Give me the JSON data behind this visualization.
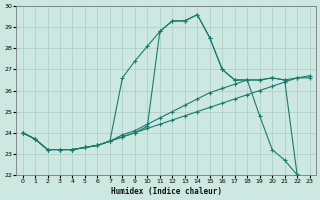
{
  "xlabel": "Humidex (Indice chaleur)",
  "background_color": "#cce8e0",
  "line_color": "#1a7a6e",
  "grid_color": "#aaccc4",
  "xlim": [
    -0.5,
    23.5
  ],
  "ylim": [
    22,
    30
  ],
  "xticks": [
    0,
    1,
    2,
    3,
    4,
    5,
    6,
    7,
    8,
    9,
    10,
    11,
    12,
    13,
    14,
    15,
    16,
    17,
    18,
    19,
    20,
    21,
    22,
    23
  ],
  "yticks": [
    22,
    23,
    24,
    25,
    26,
    27,
    28,
    29,
    30
  ],
  "figsize": [
    3.2,
    2.0
  ],
  "dpi": 100,
  "series1": [
    24.0,
    23.7,
    23.2,
    23.2,
    23.2,
    23.3,
    23.4,
    23.6,
    23.8,
    24.0,
    24.2,
    24.4,
    24.6,
    24.8,
    25.0,
    25.2,
    25.4,
    25.6,
    25.8,
    26.0,
    26.2,
    26.4,
    26.6,
    26.7
  ],
  "series2": [
    24.0,
    23.7,
    23.2,
    23.2,
    23.2,
    23.3,
    23.4,
    23.6,
    23.9,
    24.1,
    24.4,
    24.7,
    25.0,
    25.3,
    25.6,
    25.9,
    26.1,
    26.3,
    26.5,
    24.8,
    23.2,
    22.7,
    22.0,
    21.9
  ],
  "series3": [
    24.0,
    23.7,
    23.2,
    23.2,
    23.2,
    23.3,
    23.4,
    23.6,
    23.8,
    24.0,
    24.3,
    28.8,
    29.3,
    29.3,
    29.6,
    28.5,
    27.0,
    26.5,
    26.5,
    26.5,
    26.6,
    26.5,
    22.0,
    21.9
  ],
  "series4": [
    24.0,
    23.7,
    23.2,
    23.2,
    23.2,
    23.3,
    23.4,
    23.6,
    26.6,
    27.4,
    28.1,
    28.8,
    29.3,
    29.3,
    29.6,
    28.5,
    27.0,
    26.5,
    26.5,
    26.5,
    26.6,
    26.5,
    26.6,
    26.6
  ]
}
